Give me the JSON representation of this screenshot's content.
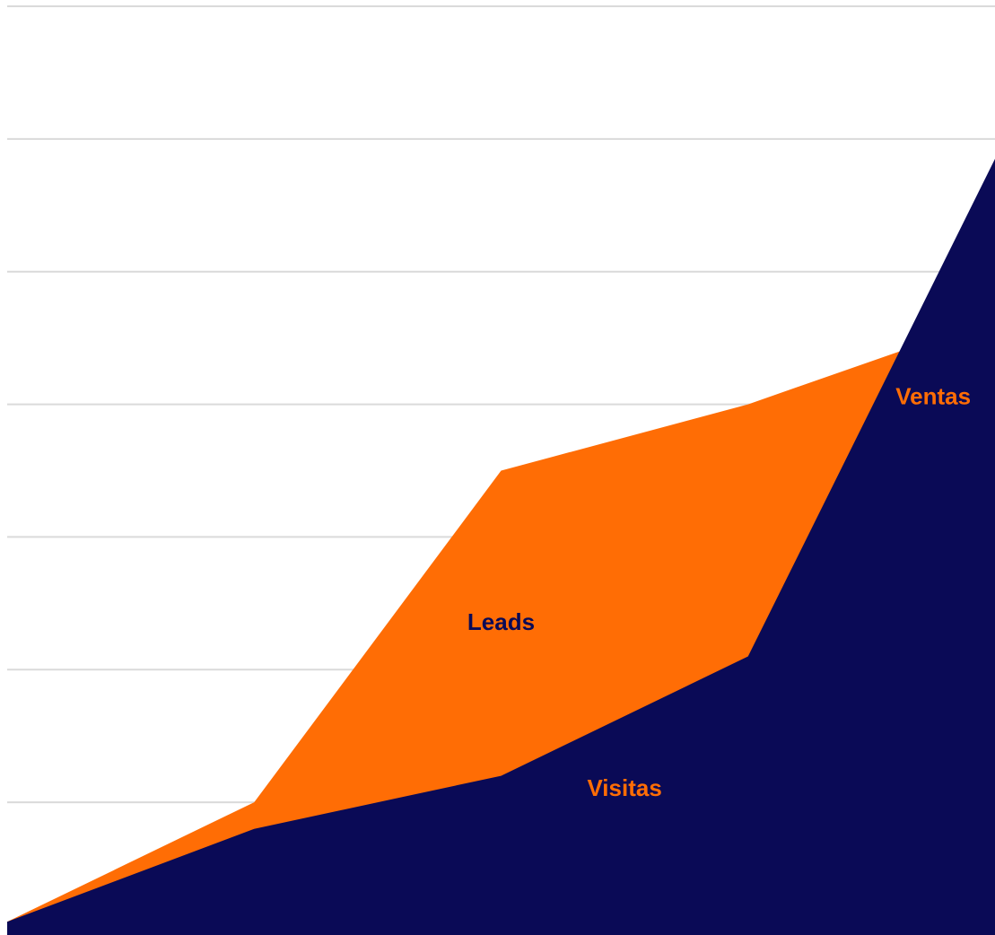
{
  "chart_data": {
    "type": "area",
    "x": [
      0,
      1,
      2,
      3,
      4
    ],
    "ylim": [
      0,
      7
    ],
    "grid": true,
    "legend": "none",
    "series": [
      {
        "name": "Leads",
        "values": [
          0.1,
          1.0,
          3.5,
          4.0,
          4.65
        ],
        "color": "#FF6D05",
        "label_color": "#0A0A56"
      },
      {
        "name": "Visitas",
        "values": [
          0.1,
          0.8,
          1.2,
          2.1,
          5.85
        ],
        "color": "#0A0A56",
        "label_color": "#FF6D05"
      }
    ],
    "annotations": [
      {
        "text": "Leads",
        "series": "Leads",
        "x": 2,
        "y": 2.3
      },
      {
        "text": "Visitas",
        "series": "Visitas",
        "x": 2.5,
        "y": 1.05
      },
      {
        "text": "Ventas",
        "x": 3.75,
        "y": 4.0
      }
    ],
    "colors": {
      "grid": "#DADADA",
      "ventas_label": "#FF6D05"
    }
  }
}
